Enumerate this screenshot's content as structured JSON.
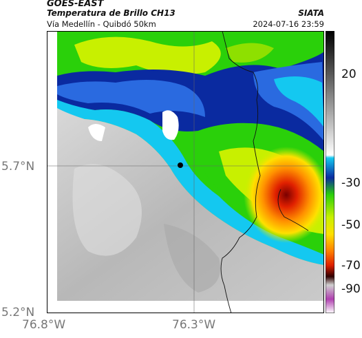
{
  "header": {
    "satellite": "GOES-EAST",
    "product": "Temperatura de Brillo CH13",
    "location": "Vía Medellín - Quibdó 50km",
    "organization": "SIATA",
    "datetime": "2024-07-16 23:59"
  },
  "map": {
    "lat_labels": [
      "5.7°N",
      "5.2°N"
    ],
    "lon_labels": [
      "76.8°W",
      "76.3°W"
    ],
    "marker": "black-marker"
  },
  "colorbar": {
    "labels": [
      "20",
      "-30",
      "-50",
      "-70",
      "-90"
    ]
  },
  "colors": {
    "green": "#2ad00a",
    "lime": "#c8f000",
    "blue_dark": "#0a2aa0",
    "blue_mid": "#2a6ae0",
    "cyan": "#14c8f0",
    "red": "#e02000",
    "gray_land": "#bdbdbd"
  }
}
